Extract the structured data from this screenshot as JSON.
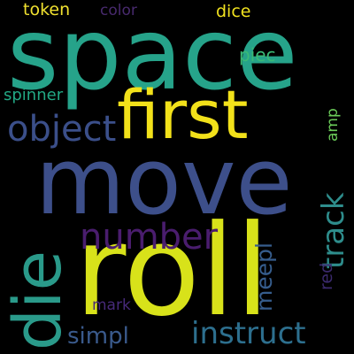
{
  "words": {
    "space": {
      "text": "space",
      "color": "#26a38a"
    },
    "move": {
      "text": "move",
      "color": "#3d4f8a"
    },
    "roll": {
      "text": "roll",
      "color": "#d8e21a"
    },
    "first": {
      "text": "first",
      "color": "#f2e11a"
    },
    "die": {
      "text": "die",
      "color": "#2a9a8a"
    },
    "number": {
      "text": "number",
      "color": "#4a1d6e"
    },
    "object": {
      "text": "object",
      "color": "#3b4f8a"
    },
    "track": {
      "text": "track",
      "color": "#2e8d8c"
    },
    "instruct": {
      "text": "instruct",
      "color": "#2d6f8e"
    },
    "simpl": {
      "text": "simpl",
      "color": "#3a5a8c"
    },
    "meepl": {
      "text": "meepl",
      "color": "#365d8d"
    },
    "token": {
      "text": "token",
      "color": "#f0e130"
    },
    "color": {
      "text": "color",
      "color": "#482a6e"
    },
    "dice": {
      "text": "dice",
      "color": "#f1e21f"
    },
    "piec": {
      "text": "piec",
      "color": "#3aba76"
    },
    "spinner": {
      "text": "spinner",
      "color": "#22a884"
    },
    "amp": {
      "text": "amp",
      "color": "#6ccd5a"
    },
    "mark": {
      "text": "mark",
      "color": "#472a7a"
    },
    "red": {
      "text": "red",
      "color": "#3b2a6e"
    }
  }
}
